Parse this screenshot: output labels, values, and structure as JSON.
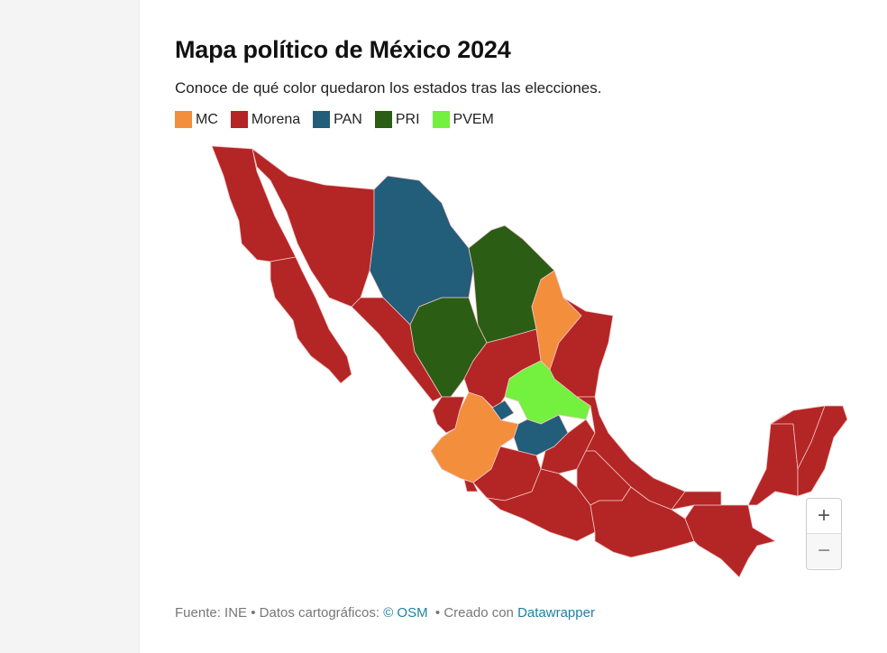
{
  "header": {
    "title": "Mapa político de México 2024",
    "subtitle": "Conoce de qué color quedaron los estados tras las elecciones."
  },
  "legend": [
    {
      "label": "MC",
      "color": "#f28e3c"
    },
    {
      "label": "Morena",
      "color": "#b42525"
    },
    {
      "label": "PAN",
      "color": "#225d79"
    },
    {
      "label": "PRI",
      "color": "#2b5d15"
    },
    {
      "label": "PVEM",
      "color": "#74f03f"
    }
  ],
  "map": {
    "region_parties": [
      "Morena",
      "Morena",
      "Morena",
      "PAN",
      "PRI",
      "MC",
      "Morena",
      "Morena",
      "PRI",
      "Morena",
      "PVEM",
      "Morena",
      "PAN",
      "MC",
      "PAN",
      "Morena",
      "Morena",
      "Morena",
      "Morena",
      "Morena",
      "Morena",
      "Morena",
      "Morena",
      "Morena",
      "Morena",
      "Morena",
      "Morena"
    ],
    "border_color": "#f3c6c6"
  },
  "zoom_controls": {
    "zoom_in": "+",
    "zoom_out": "−"
  },
  "footer": {
    "source": "Fuente: INE",
    "separator": " • ",
    "map_data_label": "Datos cartográficos: ",
    "osm_link": "© OSM",
    "created_label": "  • Creado con ",
    "datawrapper_link": "Datawrapper"
  }
}
